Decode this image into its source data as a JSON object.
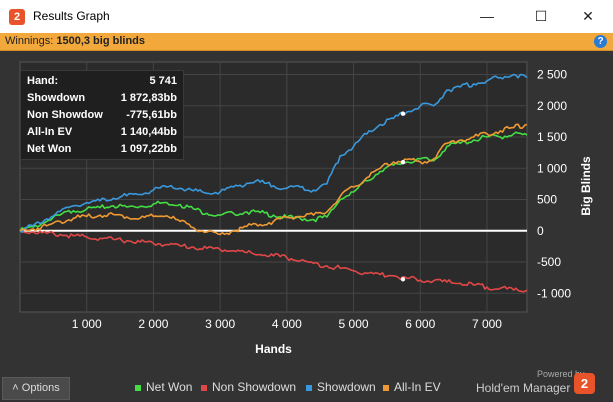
{
  "window": {
    "title": "Results Graph",
    "app_icon_glyph": "2",
    "minimize_glyph": "—",
    "maximize_glyph": "☐",
    "close_glyph": "✕"
  },
  "winnings": {
    "label": "Winnings:",
    "value": "1500,3 big blinds",
    "help_glyph": "?"
  },
  "options_label": "Options",
  "hud": {
    "rows": [
      {
        "label": "Hand:",
        "value": "5 741"
      },
      {
        "label": "Showdown",
        "value": "1 872,83bb"
      },
      {
        "label": "Non Showdown",
        "value": "-775,61bb"
      },
      {
        "label": "All-In EV",
        "value": "1 140,44bb"
      },
      {
        "label": "Net Won",
        "value": "1 097,22bb"
      }
    ]
  },
  "brand": {
    "powered": "Powered by",
    "name": "Hold'em Manager",
    "logo_glyph": "2"
  },
  "chart_data": {
    "type": "line",
    "xlabel": "Hands",
    "ylabel": "Big Blinds",
    "xlim": [
      0,
      7600
    ],
    "ylim": [
      -1300,
      2700
    ],
    "xticks": [
      1000,
      2000,
      3000,
      4000,
      5000,
      6000,
      7000
    ],
    "xtick_labels": [
      "1 000",
      "2 000",
      "3 000",
      "4 000",
      "5 000",
      "6 000",
      "7 000"
    ],
    "yticks": [
      2500,
      2000,
      1500,
      1000,
      500,
      0,
      -500,
      -1000
    ],
    "ytick_labels": [
      "2 500",
      "2 000",
      "1 500",
      "1 000",
      "500",
      "0",
      "-500",
      "-1 000"
    ],
    "grid": true,
    "legend_position": "bottom",
    "x": [
      0,
      200,
      400,
      600,
      800,
      1000,
      1200,
      1400,
      1600,
      1800,
      2000,
      2200,
      2400,
      2600,
      2800,
      3000,
      3200,
      3400,
      3600,
      3800,
      4000,
      4200,
      4400,
      4600,
      4800,
      5000,
      5200,
      5400,
      5600,
      5800,
      6000,
      6200,
      6400,
      6600,
      6800,
      7000,
      7200,
      7400,
      7600
    ],
    "series": [
      {
        "name": "Net Won",
        "color": "#44dd44",
        "values": [
          0,
          60,
          150,
          250,
          320,
          350,
          370,
          400,
          380,
          390,
          430,
          450,
          420,
          350,
          280,
          250,
          280,
          300,
          290,
          250,
          210,
          200,
          180,
          220,
          500,
          620,
          800,
          950,
          1050,
          1100,
          1150,
          1120,
          1350,
          1400,
          1450,
          1500,
          1500,
          1550,
          1530
        ]
      },
      {
        "name": "Non Showdown",
        "color": "#e04848",
        "values": [
          0,
          -20,
          -40,
          -60,
          -80,
          -100,
          -120,
          -140,
          -160,
          -180,
          -200,
          -220,
          -240,
          -260,
          -280,
          -300,
          -320,
          -350,
          -380,
          -400,
          -430,
          -480,
          -520,
          -560,
          -600,
          -640,
          -680,
          -700,
          -720,
          -760,
          -790,
          -800,
          -820,
          -840,
          -870,
          -900,
          -920,
          -950,
          -950
        ]
      },
      {
        "name": "Showdown",
        "color": "#3a98dd",
        "values": [
          0,
          80,
          190,
          310,
          400,
          450,
          480,
          520,
          560,
          580,
          650,
          700,
          680,
          640,
          600,
          620,
          700,
          760,
          780,
          720,
          680,
          700,
          650,
          750,
          1200,
          1350,
          1550,
          1700,
          1800,
          1900,
          2000,
          2000,
          2250,
          2300,
          2350,
          2400,
          2450,
          2500,
          2450
        ]
      },
      {
        "name": "All-In EV",
        "color": "#ee9933",
        "values": [
          0,
          30,
          80,
          150,
          200,
          230,
          250,
          260,
          220,
          200,
          230,
          240,
          150,
          50,
          -20,
          -60,
          0,
          70,
          100,
          150,
          220,
          230,
          250,
          300,
          550,
          700,
          850,
          1000,
          1100,
          1140,
          1100,
          1150,
          1400,
          1450,
          1500,
          1550,
          1600,
          1650,
          1700
        ]
      }
    ],
    "markers": [
      {
        "x": 5741,
        "y": 1873,
        "series": "Showdown"
      },
      {
        "x": 5741,
        "y": 1097,
        "series": "Net Won"
      },
      {
        "x": 5741,
        "y": -776,
        "series": "Non Showdown"
      }
    ]
  }
}
